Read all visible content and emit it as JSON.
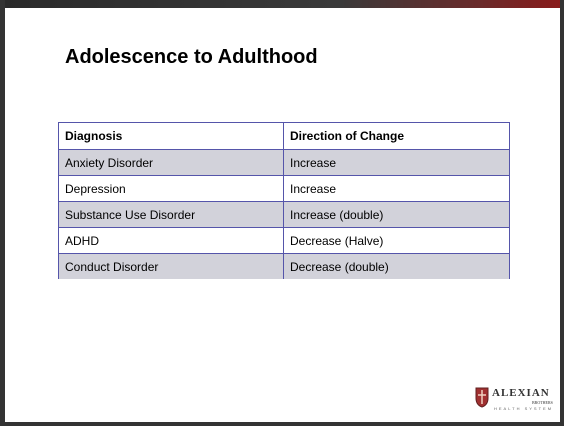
{
  "title": "Adolescence to Adulthood",
  "table": {
    "header": [
      "Diagnosis",
      "Direction of Change"
    ],
    "rows": [
      [
        "Anxiety Disorder",
        "Increase"
      ],
      [
        "Depression",
        "Increase"
      ],
      [
        "Substance Use Disorder",
        "Increase (double)"
      ],
      [
        "ADHD",
        "Decrease (Halve)"
      ],
      [
        "Conduct Disorder",
        "Decrease (double)"
      ]
    ]
  },
  "logo": {
    "name": "ALEXIAN",
    "sub": "BROTHERS",
    "system": "HEALTH SYSTEM"
  }
}
